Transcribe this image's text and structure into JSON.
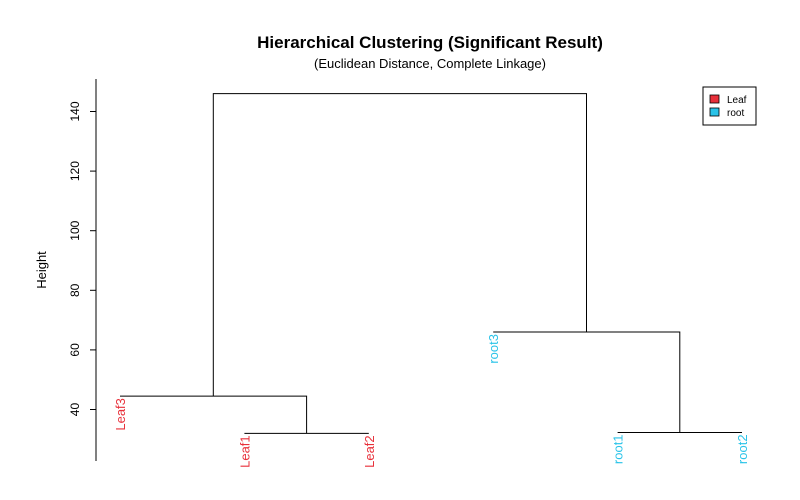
{
  "chart_data": {
    "type": "dendrogram",
    "title": "Hierarchical Clustering (Significant Result)",
    "subtitle": "(Euclidean Distance, Complete Linkage)",
    "ylabel": "Height",
    "ylim": [
      22,
      151
    ],
    "yticks": [
      40,
      60,
      80,
      100,
      120,
      140
    ],
    "leaf_order": [
      "Leaf3",
      "Leaf1",
      "Leaf2",
      "root3",
      "root1",
      "root2"
    ],
    "leaves": [
      {
        "label": "Leaf3",
        "group": "Leaf",
        "height": 44.5
      },
      {
        "label": "Leaf1",
        "group": "Leaf",
        "height": 32
      },
      {
        "label": "Leaf2",
        "group": "Leaf",
        "height": 32
      },
      {
        "label": "root3",
        "group": "root",
        "height": 66
      },
      {
        "label": "root1",
        "group": "root",
        "height": 32.3
      },
      {
        "label": "root2",
        "group": "root",
        "height": 32.3
      }
    ],
    "merges": [
      {
        "left": "Leaf1",
        "right": "Leaf2",
        "height": 32
      },
      {
        "left": "root1",
        "right": "root2",
        "height": 32.3
      },
      {
        "left": "Leaf3",
        "right": "Leaf1+Leaf2",
        "height": 44.5
      },
      {
        "left": "root3",
        "right": "root1+root2",
        "height": 66
      },
      {
        "left": "Leaf3+Leaf1+Leaf2",
        "right": "root3+root1+root2",
        "height": 146
      }
    ],
    "legend": {
      "placement": "top-right",
      "entries": [
        {
          "label": "Leaf",
          "color": "#E8303A"
        },
        {
          "label": "root",
          "color": "#29C3E8"
        }
      ]
    }
  }
}
